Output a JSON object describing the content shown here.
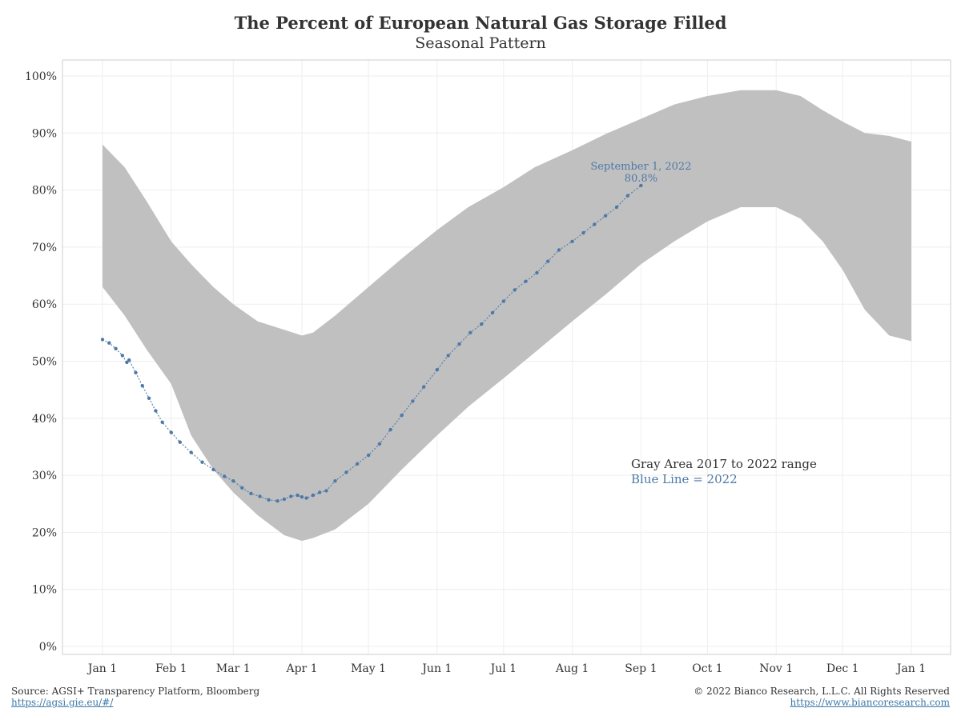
{
  "title": "The Percent of European Natural Gas Storage Filled",
  "subtitle": "Seasonal Pattern",
  "footer": {
    "source": "Source: AGSI+ Transparency Platform, Bloomberg",
    "source_link": "https://agsi.gie.eu/#/",
    "copyright": "© 2022 Bianco Research, L.L.C. All Rights Reserved",
    "copyright_link": "https://www.biancoresearch.com"
  },
  "colors": {
    "band": "#c0c0c0",
    "line": "#4e79a7",
    "grid": "#eeeeee",
    "axis": "#cccccc",
    "text": "#333333"
  },
  "chart_data": {
    "type": "area",
    "x_unit": "day of year",
    "x_ticks": [
      {
        "label": "Jan 1",
        "day": 0
      },
      {
        "label": "Feb 1",
        "day": 31
      },
      {
        "label": "Mar 1",
        "day": 59
      },
      {
        "label": "Apr 1",
        "day": 90
      },
      {
        "label": "May 1",
        "day": 120
      },
      {
        "label": "Jun 1",
        "day": 151
      },
      {
        "label": "Jul 1",
        "day": 181
      },
      {
        "label": "Aug 1",
        "day": 212
      },
      {
        "label": "Sep 1",
        "day": 243
      },
      {
        "label": "Oct 1",
        "day": 273
      },
      {
        "label": "Nov 1",
        "day": 304
      },
      {
        "label": "Dec 1",
        "day": 334
      },
      {
        "label": "Jan 1",
        "day": 365
      }
    ],
    "y_ticks": [
      "0%",
      "10%",
      "20%",
      "30%",
      "40%",
      "50%",
      "60%",
      "70%",
      "80%",
      "90%",
      "100%"
    ],
    "xlim": [
      0,
      365
    ],
    "ylim": [
      0,
      100
    ],
    "grid": true,
    "series": [
      {
        "kind": "range-band",
        "x": [
          0,
          10,
          20,
          31,
          40,
          50,
          59,
          70,
          82,
          90,
          95,
          105,
          120,
          135,
          151,
          165,
          181,
          195,
          212,
          228,
          243,
          258,
          273,
          288,
          304,
          315,
          325,
          334,
          344,
          355,
          365
        ],
        "upper": [
          88,
          84,
          78,
          71,
          67,
          63,
          60,
          57,
          55.5,
          54.5,
          55,
          58,
          63,
          68,
          73,
          77,
          80.5,
          84,
          87,
          90,
          92.5,
          95,
          96.5,
          97.5,
          97.5,
          96.5,
          94,
          92,
          90,
          89.5,
          88.5
        ],
        "lower": [
          63,
          58,
          52,
          46,
          37,
          31,
          27,
          23,
          19.5,
          18.5,
          19,
          20.5,
          25,
          31,
          37,
          42,
          47,
          51.5,
          57,
          62,
          67,
          71,
          74.5,
          77,
          77,
          75,
          71,
          66,
          59,
          54.5,
          53.5
        ]
      },
      {
        "kind": "dots",
        "x": [
          0,
          3,
          6,
          9,
          11,
          12,
          15,
          18,
          21,
          24,
          27,
          31,
          35,
          40,
          45,
          50,
          55,
          59,
          63,
          67,
          71,
          75,
          79,
          82,
          85,
          88,
          90,
          92,
          95,
          98,
          101,
          105,
          110,
          115,
          120,
          125,
          130,
          135,
          140,
          145,
          151,
          156,
          161,
          166,
          171,
          176,
          181,
          186,
          191,
          196,
          201,
          206,
          212,
          217,
          222,
          227,
          232,
          237,
          243
        ],
        "y": [
          53.8,
          53.2,
          52.2,
          51,
          49.8,
          50.2,
          48,
          45.7,
          43.5,
          41.3,
          39.3,
          37.5,
          35.8,
          34,
          32.3,
          31,
          29.8,
          29,
          27.8,
          26.8,
          26.3,
          25.7,
          25.5,
          25.8,
          26.3,
          26.5,
          26.2,
          26,
          26.5,
          27,
          27.3,
          29,
          30.5,
          32,
          33.5,
          35.5,
          38,
          40.5,
          43,
          45.5,
          48.5,
          51,
          53,
          55,
          56.5,
          58.5,
          60.5,
          62.5,
          64,
          65.5,
          67.5,
          69.5,
          71,
          72.5,
          74,
          75.5,
          77,
          79,
          80.8
        ]
      }
    ],
    "annotations": {
      "point_label": "September 1, 2022",
      "point_value": "80.8%",
      "legend_gray": "Gray Area 2017 to 2022 range",
      "legend_blue": "Blue Line = 2022"
    }
  }
}
